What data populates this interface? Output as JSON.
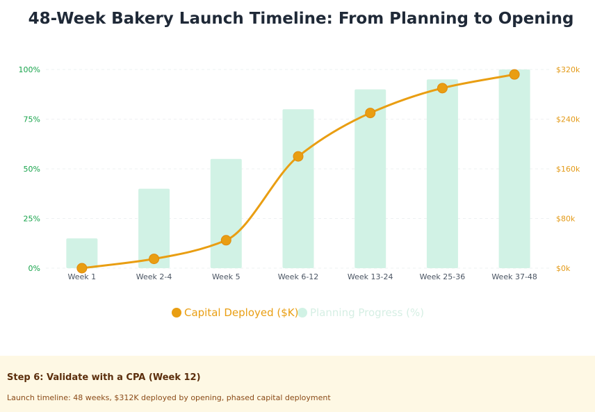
{
  "chart_data": {
    "type": "bar+line",
    "title": "48-Week Bakery Launch Timeline: From Planning to Opening",
    "categories": [
      "Week 1",
      "Week 2-4",
      "Week 5",
      "Week 6-12",
      "Week 13-24",
      "Week 25-36",
      "Week 37-48"
    ],
    "series": [
      {
        "name": "Capital Deployed ($K)",
        "type": "line",
        "axis": "right",
        "color": "#e99e12",
        "values": [
          0,
          15,
          45,
          180,
          250,
          290,
          312
        ]
      },
      {
        "name": "Planning Progress (%)",
        "type": "bar",
        "axis": "left",
        "color": "#d1f2e5",
        "values": [
          15,
          40,
          55,
          80,
          90,
          95,
          100
        ]
      }
    ],
    "y_left": {
      "ticks": [
        "0%",
        "25%",
        "50%",
        "75%",
        "100%"
      ],
      "range": [
        0,
        100
      ],
      "color": "#16a34a"
    },
    "y_right": {
      "ticks": [
        "$0k",
        "$80k",
        "$160k",
        "$240k",
        "$320k"
      ],
      "range": [
        0,
        320
      ],
      "color": "#e39a17"
    },
    "grid": true,
    "legend_position": "bottom"
  },
  "footer": {
    "title": "Step 6: Validate with a CPA (Week 12)",
    "subtitle": "Launch timeline: 48 weeks, $312K deployed by opening, phased capital deployment"
  }
}
